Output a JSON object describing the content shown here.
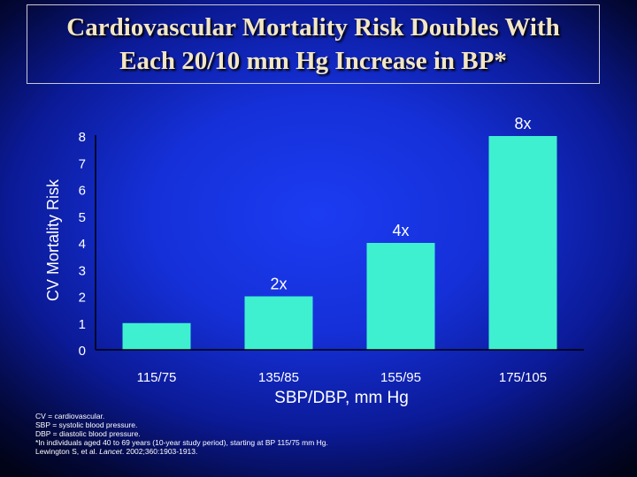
{
  "title": {
    "line1": "Cardiovascular Mortality Risk Doubles With",
    "line2": "Each 20/10 mm Hg Increase in BP*"
  },
  "chart_data": {
    "type": "bar",
    "categories": [
      "115/75",
      "135/85",
      "155/95",
      "175/105"
    ],
    "values": [
      1,
      2,
      4,
      8
    ],
    "data_labels": [
      "",
      "2x",
      "4x",
      "8x"
    ],
    "xlabel": "SBP/DBP, mm Hg",
    "ylabel": "CV Mortality Risk",
    "ylim": [
      0,
      8
    ],
    "yticks": [
      0,
      1,
      2,
      3,
      4,
      5,
      6,
      7,
      8
    ],
    "grid": false,
    "legend": "none"
  },
  "footnotes": {
    "line1": "CV = cardiovascular.",
    "line2": "SBP = systolic blood pressure.",
    "line3": "DBP = diastolic blood pressure.",
    "line4": "*In individuals aged 40 to 69 years (10-year study period), starting at BP 115/75 mm Hg.",
    "line5_text": "Lewington S, et al. ",
    "line5_journal": "Lancet",
    "line5_rest": ". 2002;360:1903-1913."
  },
  "colors": {
    "bar": "#3ff0d0",
    "axis": "#000000",
    "text": "#ffffff",
    "title": "#f2e6c4"
  }
}
